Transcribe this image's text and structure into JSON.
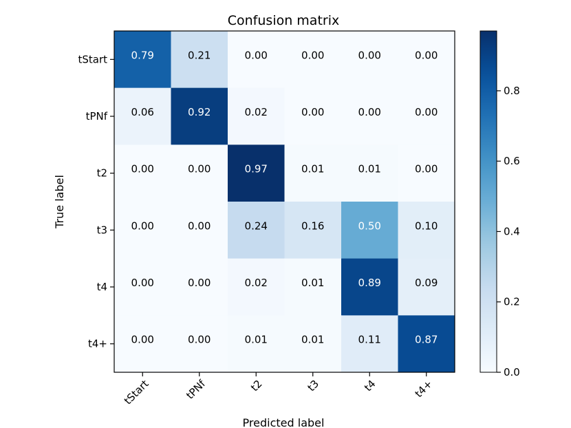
{
  "chart_data": {
    "type": "heatmap",
    "title": "Confusion matrix",
    "xlabel": "Predicted label",
    "ylabel": "True label",
    "x_categories": [
      "tStart",
      "tPNf",
      "t2",
      "t3",
      "t4",
      "t4+"
    ],
    "y_categories": [
      "tStart",
      "tPNf",
      "t2",
      "t3",
      "t4",
      "t4+"
    ],
    "values": [
      [
        0.79,
        0.21,
        0.0,
        0.0,
        0.0,
        0.0
      ],
      [
        0.06,
        0.92,
        0.02,
        0.0,
        0.0,
        0.0
      ],
      [
        0.0,
        0.0,
        0.97,
        0.01,
        0.01,
        0.0
      ],
      [
        0.0,
        0.0,
        0.24,
        0.16,
        0.5,
        0.1
      ],
      [
        0.0,
        0.0,
        0.02,
        0.01,
        0.89,
        0.09
      ],
      [
        0.0,
        0.0,
        0.01,
        0.01,
        0.11,
        0.87
      ]
    ],
    "value_format": "0.00",
    "colormap": "Blues",
    "colorbar": {
      "range": [
        0.0,
        0.97
      ],
      "ticks": [
        0.0,
        0.2,
        0.4,
        0.6,
        0.8
      ],
      "tick_labels": [
        "0.0",
        "0.2",
        "0.4",
        "0.6",
        "0.8"
      ]
    },
    "grid": false,
    "text_color_dark": "#000000",
    "text_color_light": "#ffffff"
  }
}
